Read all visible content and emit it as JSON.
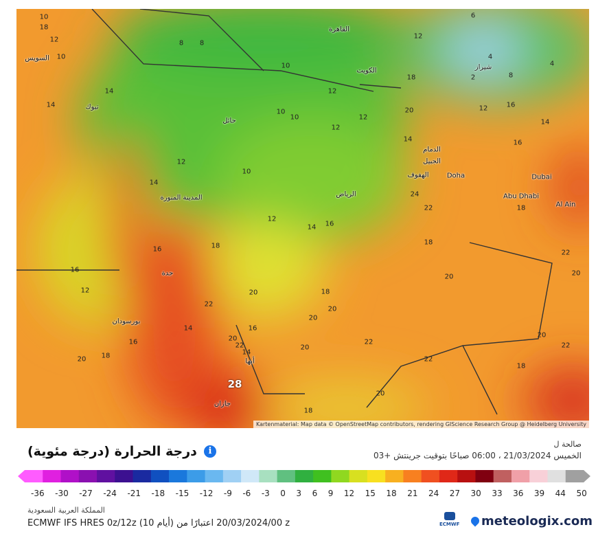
{
  "map": {
    "attribution": "Kartenmaterial: Map data © OpenStreetMap contributors, rendering GIScience Research Group @ Heidelberg University",
    "max_label": "28",
    "cities": [
      "الرياض",
      "جدة",
      "المدينة المنورة",
      "حائل",
      "الكويت",
      "الدمام",
      "Doha",
      "Dubai",
      "Abu Dhabi",
      "Al Ain",
      "بورسودان",
      "أبها",
      "جازان",
      "القاهرة",
      "السويس",
      "تبوك",
      "شيراز",
      "الجبيل",
      "الهفوف"
    ],
    "values": [
      "18",
      "10",
      "8",
      "8",
      "10",
      "12",
      "12",
      "10",
      "14",
      "12",
      "14",
      "10",
      "12",
      "14",
      "10",
      "12",
      "16",
      "20",
      "18",
      "20",
      "16",
      "14",
      "22",
      "14",
      "16",
      "12",
      "20",
      "16",
      "18",
      "20",
      "18",
      "20",
      "20",
      "22",
      "22",
      "22",
      "20",
      "18",
      "20",
      "18",
      "18",
      "20",
      "12",
      "14",
      "16",
      "16",
      "24",
      "22",
      "14",
      "10",
      "6",
      "4",
      "2",
      "4",
      "8",
      "12",
      "12",
      "14",
      "16",
      "18",
      "22",
      "20",
      "22",
      "20",
      "18"
    ],
    "colors": {
      "warm": "#f29a2e",
      "hot": "#e0401e",
      "cool": "#5cc43a",
      "mild": "#c8d630"
    }
  },
  "legend": {
    "title": "درجة الحرارة (درجة مئوية)",
    "info_icon": "info-icon",
    "valid_label": "صالحة ل",
    "valid_time": "الخميس 21/03/2024 ، 06:00 صباحًا بتوقيت جرينتش +03",
    "ticks": [
      "-36",
      "-30",
      "-27",
      "-24",
      "-21",
      "-18",
      "-15",
      "-12",
      "-9",
      "-6",
      "-3",
      "0",
      "3",
      "6",
      "9",
      "12",
      "15",
      "18",
      "21",
      "24",
      "27",
      "30",
      "33",
      "36",
      "39",
      "44",
      "50"
    ],
    "colors": [
      "#ff5cff",
      "#e020e0",
      "#b010c8",
      "#8a10b0",
      "#6010a0",
      "#3c1090",
      "#1a2aa0",
      "#1050c0",
      "#1a78dc",
      "#3c9ce8",
      "#6ab8f0",
      "#a0d0f4",
      "#d0e8f8",
      "#a8e0c0",
      "#60c080",
      "#30b040",
      "#40c020",
      "#90d820",
      "#d8e020",
      "#f8e020",
      "#f8b020",
      "#f88020",
      "#f05020",
      "#e02818",
      "#b81010",
      "#800010",
      "#c06060",
      "#f0a0a8",
      "#f8d0d8",
      "#e0e0e0",
      "#a0a0a0"
    ]
  },
  "footer": {
    "region": "المملكة العربية السعودية",
    "model": "ECMWF IFS HRES 0z/12z (10 أيام) 20/03/2024/00 اعتبارًا من z",
    "ecmwf": "ECMWF",
    "brand": "meteologix.com"
  }
}
